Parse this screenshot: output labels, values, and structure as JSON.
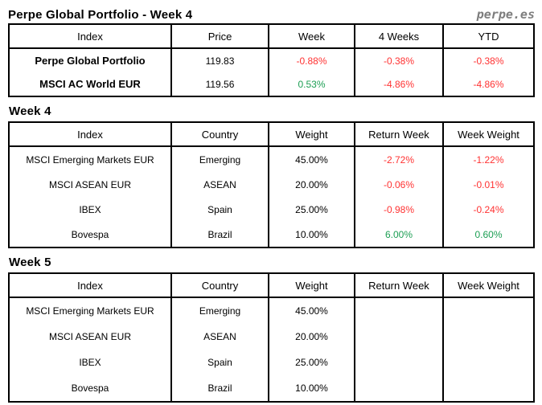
{
  "page": {
    "title": "Perpe Global Portfolio - Week 4",
    "brand": "perpe.es"
  },
  "colors": {
    "negative": "#ff3232",
    "positive": "#1c9e53",
    "brand_gray": "#7d7d7d",
    "border": "#000000"
  },
  "summary_table": {
    "headers": [
      "Index",
      "Price",
      "Week",
      "4 Weeks",
      "YTD"
    ],
    "rows": [
      [
        "Perpe Global Portfolio",
        "119.83",
        "-0.88%",
        "-0.38%",
        "-0.38%"
      ],
      [
        "MSCI AC World EUR",
        "119.56",
        "0.53%",
        "-4.86%",
        "-4.86%"
      ]
    ]
  },
  "week4": {
    "heading": "Week 4",
    "headers": [
      "Index",
      "Country",
      "Weight",
      "Return Week",
      "Week Weight"
    ],
    "rows": [
      [
        "MSCI Emerging Markets EUR",
        "Emerging",
        "45.00%",
        "-2.72%",
        "-1.22%"
      ],
      [
        "MSCI ASEAN EUR",
        "ASEAN",
        "20.00%",
        "-0.06%",
        "-0.01%"
      ],
      [
        "IBEX",
        "Spain",
        "25.00%",
        "-0.98%",
        "-0.24%"
      ],
      [
        "Bovespa",
        "Brazil",
        "10.00%",
        "6.00%",
        "0.60%"
      ]
    ]
  },
  "week5": {
    "heading": "Week 5",
    "headers": [
      "Index",
      "Country",
      "Weight",
      "Return Week",
      "Week Weight"
    ],
    "rows": [
      [
        "MSCI Emerging Markets EUR",
        "Emerging",
        "45.00%",
        "",
        ""
      ],
      [
        "MSCI ASEAN EUR",
        "ASEAN",
        "20.00%",
        "",
        ""
      ],
      [
        "IBEX",
        "Spain",
        "25.00%",
        "",
        ""
      ],
      [
        "Bovespa",
        "Brazil",
        "10.00%",
        "",
        ""
      ]
    ]
  }
}
